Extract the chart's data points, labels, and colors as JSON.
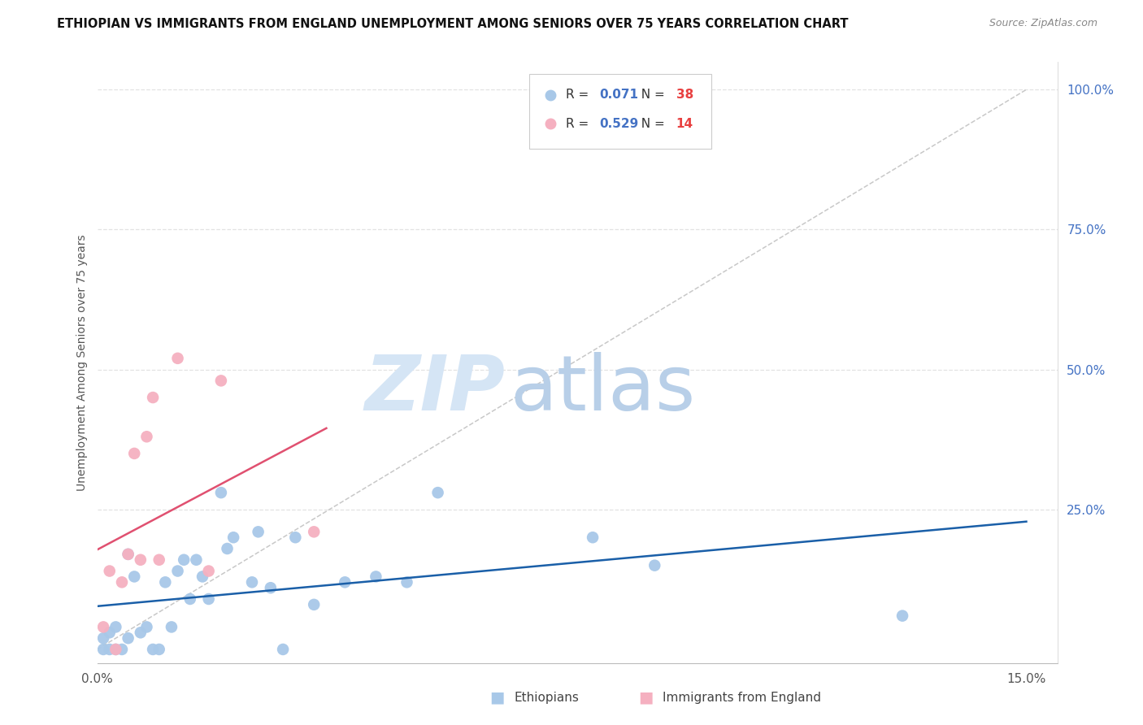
{
  "title": "ETHIOPIAN VS IMMIGRANTS FROM ENGLAND UNEMPLOYMENT AMONG SENIORS OVER 75 YEARS CORRELATION CHART",
  "source": "Source: ZipAtlas.com",
  "ylabel": "Unemployment Among Seniors over 75 years",
  "xlim": [
    0.0,
    0.155
  ],
  "ylim": [
    -0.025,
    1.05
  ],
  "ethiopians_R": "0.071",
  "ethiopians_N": "38",
  "england_R": "0.529",
  "england_N": "14",
  "ethiopians_color": "#a8c8e8",
  "england_color": "#f5b0c0",
  "trendline_eth_color": "#1a5fa8",
  "trendline_eng_color": "#e05070",
  "diagonal_color": "#c8c8c8",
  "watermark_zip_color": "#d5e5f5",
  "watermark_atlas_color": "#b8cfe8",
  "bg_color": "#ffffff",
  "grid_color": "#e2e2e2",
  "right_tick_color": "#4472c4",
  "xtick_color": "#555555",
  "ytick_right_vals": [
    0.25,
    0.5,
    0.75,
    1.0
  ],
  "ytick_right_labels": [
    "25.0%",
    "50.0%",
    "75.0%",
    "100.0%"
  ],
  "ethiopians_x": [
    0.001,
    0.001,
    0.002,
    0.002,
    0.003,
    0.003,
    0.004,
    0.005,
    0.005,
    0.006,
    0.007,
    0.008,
    0.009,
    0.01,
    0.011,
    0.012,
    0.013,
    0.014,
    0.015,
    0.016,
    0.017,
    0.018,
    0.02,
    0.021,
    0.022,
    0.025,
    0.026,
    0.028,
    0.03,
    0.032,
    0.035,
    0.04,
    0.045,
    0.05,
    0.055,
    0.08,
    0.09,
    0.13
  ],
  "ethiopians_y": [
    0.0,
    0.02,
    0.0,
    0.03,
    0.0,
    0.04,
    0.0,
    0.17,
    0.02,
    0.13,
    0.03,
    0.04,
    0.0,
    0.0,
    0.12,
    0.04,
    0.14,
    0.16,
    0.09,
    0.16,
    0.13,
    0.09,
    0.28,
    0.18,
    0.2,
    0.12,
    0.21,
    0.11,
    0.0,
    0.2,
    0.08,
    0.12,
    0.13,
    0.12,
    0.28,
    0.2,
    0.15,
    0.06
  ],
  "england_x": [
    0.001,
    0.002,
    0.003,
    0.004,
    0.005,
    0.006,
    0.007,
    0.008,
    0.009,
    0.01,
    0.013,
    0.018,
    0.02,
    0.035
  ],
  "england_y": [
    0.04,
    0.14,
    0.0,
    0.12,
    0.17,
    0.35,
    0.16,
    0.38,
    0.45,
    0.16,
    0.52,
    0.14,
    0.48,
    0.21
  ]
}
